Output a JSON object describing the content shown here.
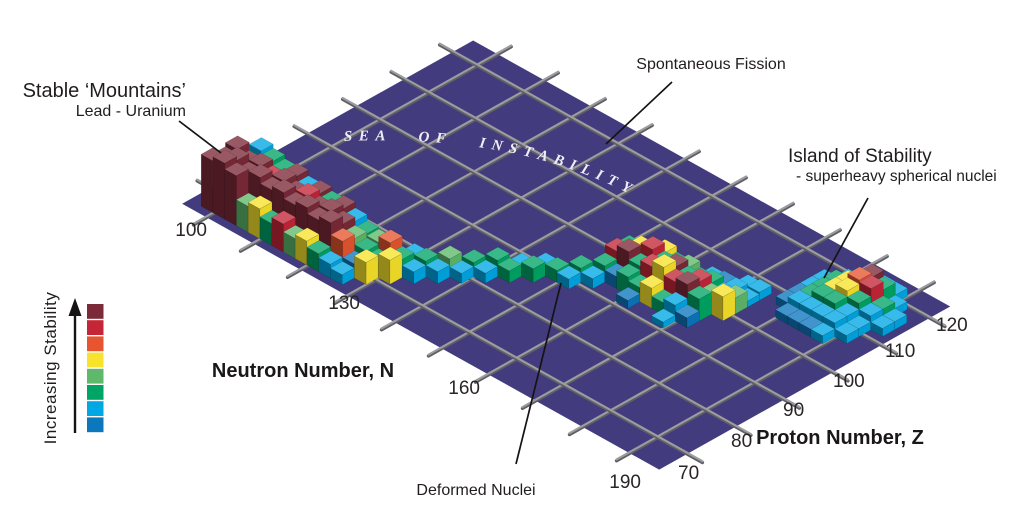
{
  "annotations": {
    "stable_mountains_line1": "Stable ‘Mountains’",
    "stable_mountains_line2": "Lead - Uranium",
    "spontaneous_fission": "Spontaneous Fission",
    "island_line1": "Island of Stability",
    "island_line2": "- superheavy spherical nuclei",
    "deformed_nuclei": "Deformed Nuclei",
    "sea_of_instability": "SEA OF INSTABILITY"
  },
  "axes": {
    "neutron": {
      "label": "Neutron Number, N",
      "ticks": [
        "100",
        "130",
        "160",
        "190"
      ]
    },
    "proton": {
      "label": "Proton Number, Z",
      "ticks": [
        "70",
        "80",
        "90",
        "100",
        "110",
        "120"
      ]
    }
  },
  "legend": {
    "label": "Increasing Stability",
    "direction": "arrow points up toward most stable",
    "colors_top_to_bottom": [
      "#7b2a38",
      "#c42638",
      "#e6552f",
      "#f7e32b",
      "#5eb96a",
      "#00a565",
      "#00a7e4",
      "#0b77bd"
    ]
  },
  "colors": {
    "sea": "#423c7e",
    "grid": "#9c9ca1",
    "grid_shadow": "#5f5f66",
    "text": "#211d1e",
    "background": "#ffffff"
  },
  "chart_data": {
    "type": "heatmap",
    "note": "3D isometric voxel landscape: nuclear stability vs neutron number N and proton number Z. Height/color = stability.",
    "title": "Island of Stability nuclear landscape",
    "xlabel": "Neutron Number, N",
    "ylabel": "Proton Number, Z",
    "x_ticks": [
      100,
      130,
      160,
      190
    ],
    "y_ticks": [
      70,
      80,
      90,
      100,
      110,
      120
    ],
    "x_range": [
      95,
      196.5
    ],
    "y_range": [
      64,
      124
    ],
    "grid": true,
    "legend_position": "left",
    "color_scale": {
      "label": "Increasing Stability",
      "colors": [
        "#7b2a38",
        "#c42638",
        "#e6552f",
        "#f7e32b",
        "#5eb96a",
        "#00a565",
        "#00a7e4",
        "#0b77bd"
      ],
      "meaning": "index 0 = most stable (dark maroon) … index 7 = least stable (blue)"
    },
    "features": [
      {
        "name": "Stable 'Mountains' (Lead - Uranium)",
        "approx_N": [
          97,
          125
        ],
        "approx_Z": [
          65,
          75
        ],
        "description": "tall dark-maroon ridge of stable heavy nuclei"
      },
      {
        "name": "Deformed Nuclei",
        "approx_N": [
          150,
          172
        ],
        "approx_Z": [
          92,
          101
        ],
        "description": "mid-height green ridge with crimson/yellow peaks"
      },
      {
        "name": "Island of Stability",
        "approx_N": [
          177,
          193
        ],
        "approx_Z": [
          104,
          119
        ],
        "description": "isolated terraced mound: blue skirt, green, yellow plateau, red summit (superheavy spherical nuclei)"
      },
      {
        "name": "Sea of Instability",
        "approx_N": [
          95,
          196
        ],
        "approx_Z": [
          64,
          124
        ],
        "description": "flat dark indigo plane between ridges"
      },
      {
        "name": "Spontaneous Fission",
        "description": "region of grid beyond the stable ridge toward high Z"
      }
    ],
    "columns_format": "[N, Z, height_px, color_index] — approximate voxel columns",
    "columns": [
      [
        97.5,
        65.5,
        52,
        0
      ],
      [
        100,
        65.5,
        56,
        0
      ],
      [
        102.5,
        65.5,
        50,
        0
      ],
      [
        105,
        65.5,
        26,
        4
      ],
      [
        107.5,
        65.5,
        30,
        3
      ],
      [
        110,
        65.5,
        22,
        5
      ],
      [
        112.5,
        65.5,
        28,
        1
      ],
      [
        115,
        65.5,
        20,
        4
      ],
      [
        117.5,
        65.5,
        24,
        3
      ],
      [
        120,
        65.5,
        18,
        5
      ],
      [
        122.5,
        65.5,
        14,
        6
      ],
      [
        125,
        65.5,
        10,
        6
      ],
      [
        97.5,
        68,
        46,
        0
      ],
      [
        100,
        68,
        52,
        0
      ],
      [
        102.5,
        68,
        44,
        0
      ],
      [
        105,
        68,
        48,
        0
      ],
      [
        107.5,
        68,
        42,
        0
      ],
      [
        110,
        68,
        46,
        0
      ],
      [
        112.5,
        68,
        40,
        0
      ],
      [
        115,
        68,
        44,
        0
      ],
      [
        117.5,
        68,
        38,
        0
      ],
      [
        120,
        68,
        42,
        0
      ],
      [
        122.5,
        68,
        30,
        2
      ],
      [
        125,
        68,
        14,
        7
      ],
      [
        127.5,
        68,
        22,
        3
      ],
      [
        97.5,
        70.5,
        50,
        0
      ],
      [
        100,
        70.5,
        42,
        0
      ],
      [
        102.5,
        70.5,
        46,
        0
      ],
      [
        105,
        70.5,
        40,
        1
      ],
      [
        107.5,
        70.5,
        44,
        0
      ],
      [
        110,
        70.5,
        38,
        0
      ],
      [
        112.5,
        70.5,
        42,
        1
      ],
      [
        115,
        70.5,
        36,
        0
      ],
      [
        117.5,
        70.5,
        40,
        0
      ],
      [
        120,
        70.5,
        34,
        0
      ],
      [
        122.5,
        70.5,
        26,
        4
      ],
      [
        125,
        70.5,
        20,
        5
      ],
      [
        127.5,
        70.5,
        16,
        5
      ],
      [
        130,
        70.5,
        24,
        3
      ],
      [
        100,
        73,
        48,
        6
      ],
      [
        102.5,
        73,
        44,
        5
      ],
      [
        105,
        73,
        40,
        5
      ],
      [
        107.5,
        73,
        42,
        0
      ],
      [
        110,
        73,
        36,
        6
      ],
      [
        112.5,
        73,
        38,
        0
      ],
      [
        115,
        73,
        34,
        5
      ],
      [
        117.5,
        73,
        36,
        0
      ],
      [
        120,
        73,
        30,
        6
      ],
      [
        122.5,
        73,
        24,
        5
      ],
      [
        125,
        73,
        22,
        4
      ],
      [
        127.5,
        73,
        28,
        2
      ],
      [
        130,
        73,
        18,
        5
      ],
      [
        132.5,
        73,
        12,
        6
      ],
      [
        130,
        75.5,
        14,
        6
      ],
      [
        132.5,
        75.5,
        16,
        5
      ],
      [
        135,
        75.5,
        12,
        6
      ],
      [
        135,
        78,
        18,
        4
      ],
      [
        137.5,
        78,
        10,
        6
      ],
      [
        137.5,
        80.5,
        14,
        5
      ],
      [
        140,
        80.5,
        10,
        6
      ],
      [
        140,
        83,
        16,
        5
      ],
      [
        142.5,
        83,
        12,
        5
      ],
      [
        142.5,
        85.5,
        10,
        6
      ],
      [
        145,
        85.5,
        14,
        5
      ],
      [
        145,
        88,
        10,
        6
      ],
      [
        147.5,
        88,
        12,
        5
      ],
      [
        150,
        88,
        10,
        6
      ],
      [
        150,
        90.5,
        14,
        5
      ],
      [
        152.5,
        90.5,
        10,
        6
      ],
      [
        160,
        90.5,
        8,
        7
      ],
      [
        167.5,
        90.5,
        6,
        6
      ],
      [
        152.5,
        93,
        16,
        5
      ],
      [
        155,
        93,
        12,
        7
      ],
      [
        157.5,
        93,
        18,
        5
      ],
      [
        160,
        93,
        14,
        5
      ],
      [
        162.5,
        93,
        20,
        3
      ],
      [
        165,
        93,
        12,
        5
      ],
      [
        167.5,
        93,
        16,
        6
      ],
      [
        170,
        93,
        10,
        7
      ],
      [
        152.5,
        95.5,
        24,
        1
      ],
      [
        155,
        95.5,
        30,
        0
      ],
      [
        157.5,
        95.5,
        22,
        5
      ],
      [
        160,
        95.5,
        28,
        1
      ],
      [
        162.5,
        95.5,
        34,
        3
      ],
      [
        165,
        95.5,
        26,
        1
      ],
      [
        167.5,
        95.5,
        30,
        0
      ],
      [
        170,
        95.5,
        22,
        5
      ],
      [
        152.5,
        98,
        20,
        5
      ],
      [
        155,
        98,
        26,
        3
      ],
      [
        157.5,
        98,
        32,
        1
      ],
      [
        160,
        98,
        24,
        5
      ],
      [
        162.5,
        98,
        28,
        0
      ],
      [
        165,
        98,
        22,
        5
      ],
      [
        167.5,
        98,
        26,
        1
      ],
      [
        170,
        98,
        18,
        4
      ],
      [
        172.5,
        98,
        24,
        3
      ],
      [
        155,
        100.5,
        18,
        5
      ],
      [
        157.5,
        100.5,
        22,
        3
      ],
      [
        160,
        100.5,
        16,
        5
      ],
      [
        162.5,
        100.5,
        20,
        4
      ],
      [
        165,
        100.5,
        14,
        5
      ],
      [
        167.5,
        100.5,
        18,
        5
      ],
      [
        170,
        100.5,
        12,
        6
      ],
      [
        172.5,
        100.5,
        16,
        4
      ],
      [
        165,
        103,
        8,
        6
      ],
      [
        167.5,
        103,
        10,
        7
      ],
      [
        170,
        103,
        10,
        6
      ],
      [
        172.5,
        103,
        6,
        6
      ],
      [
        172.5,
        105.5,
        8,
        6
      ],
      [
        170,
        105.5,
        6,
        6
      ],
      [
        180,
        104,
        8,
        7
      ],
      [
        182.5,
        104,
        8,
        7
      ],
      [
        185,
        104,
        8,
        7
      ],
      [
        187.5,
        104,
        8,
        6
      ],
      [
        177.5,
        106.5,
        8,
        7
      ],
      [
        180,
        106.5,
        14,
        6
      ],
      [
        182.5,
        106.5,
        14,
        6
      ],
      [
        185,
        106.5,
        14,
        6
      ],
      [
        187.5,
        106.5,
        14,
        6
      ],
      [
        190,
        106.5,
        8,
        6
      ],
      [
        177.5,
        109,
        8,
        7
      ],
      [
        180,
        109,
        14,
        5
      ],
      [
        182.5,
        109,
        20,
        5
      ],
      [
        185,
        109,
        20,
        5
      ],
      [
        187.5,
        109,
        14,
        6
      ],
      [
        190,
        109,
        8,
        6
      ],
      [
        177.5,
        111.5,
        8,
        6
      ],
      [
        180,
        111.5,
        14,
        5
      ],
      [
        182.5,
        111.5,
        20,
        3
      ],
      [
        185,
        111.5,
        26,
        3
      ],
      [
        187.5,
        111.5,
        20,
        5
      ],
      [
        190,
        111.5,
        14,
        6
      ],
      [
        192.5,
        111.5,
        8,
        6
      ],
      [
        177.5,
        114,
        8,
        6
      ],
      [
        180,
        114,
        14,
        5
      ],
      [
        182.5,
        114,
        20,
        3
      ],
      [
        185,
        114,
        30,
        2
      ],
      [
        187.5,
        114,
        28,
        1
      ],
      [
        190,
        114,
        14,
        5
      ],
      [
        192.5,
        114,
        8,
        6
      ],
      [
        180,
        116.5,
        8,
        6
      ],
      [
        182.5,
        116.5,
        14,
        6
      ],
      [
        185,
        116.5,
        26,
        0
      ],
      [
        187.5,
        116.5,
        20,
        5
      ],
      [
        190,
        116.5,
        8,
        6
      ],
      [
        182.5,
        119,
        8,
        6
      ],
      [
        185,
        119,
        8,
        6
      ],
      [
        187.5,
        119,
        8,
        6
      ]
    ]
  }
}
